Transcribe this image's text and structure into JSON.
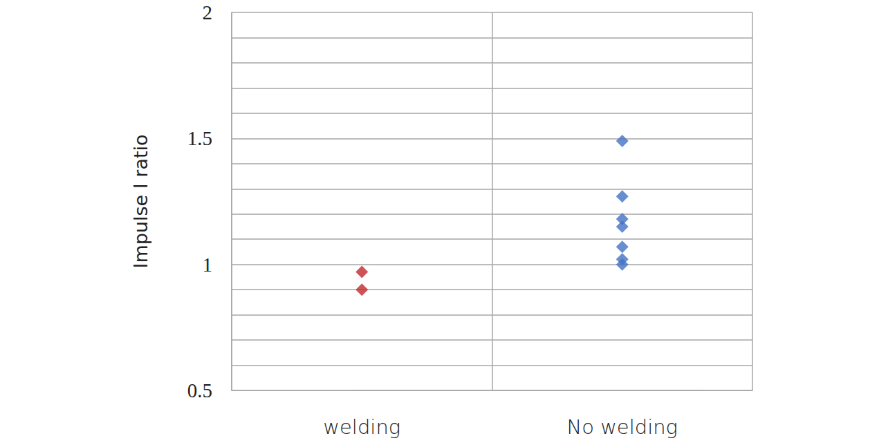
{
  "chart_data": {
    "type": "scatter",
    "categories": [
      "welding",
      "No welding"
    ],
    "y_label": "Impulse I ratio",
    "values": [
      [
        0.97,
        0.9
      ],
      [
        1.49,
        1.27,
        1.18,
        1.15,
        1.07,
        1.02,
        1.0
      ]
    ],
    "colors": [
      "#c0282d",
      "#4472c4"
    ],
    "marker": "diamond",
    "ylim": [
      0.5,
      2
    ],
    "yticks": [
      0.5,
      1,
      1.5,
      2
    ],
    "grid": true
  }
}
